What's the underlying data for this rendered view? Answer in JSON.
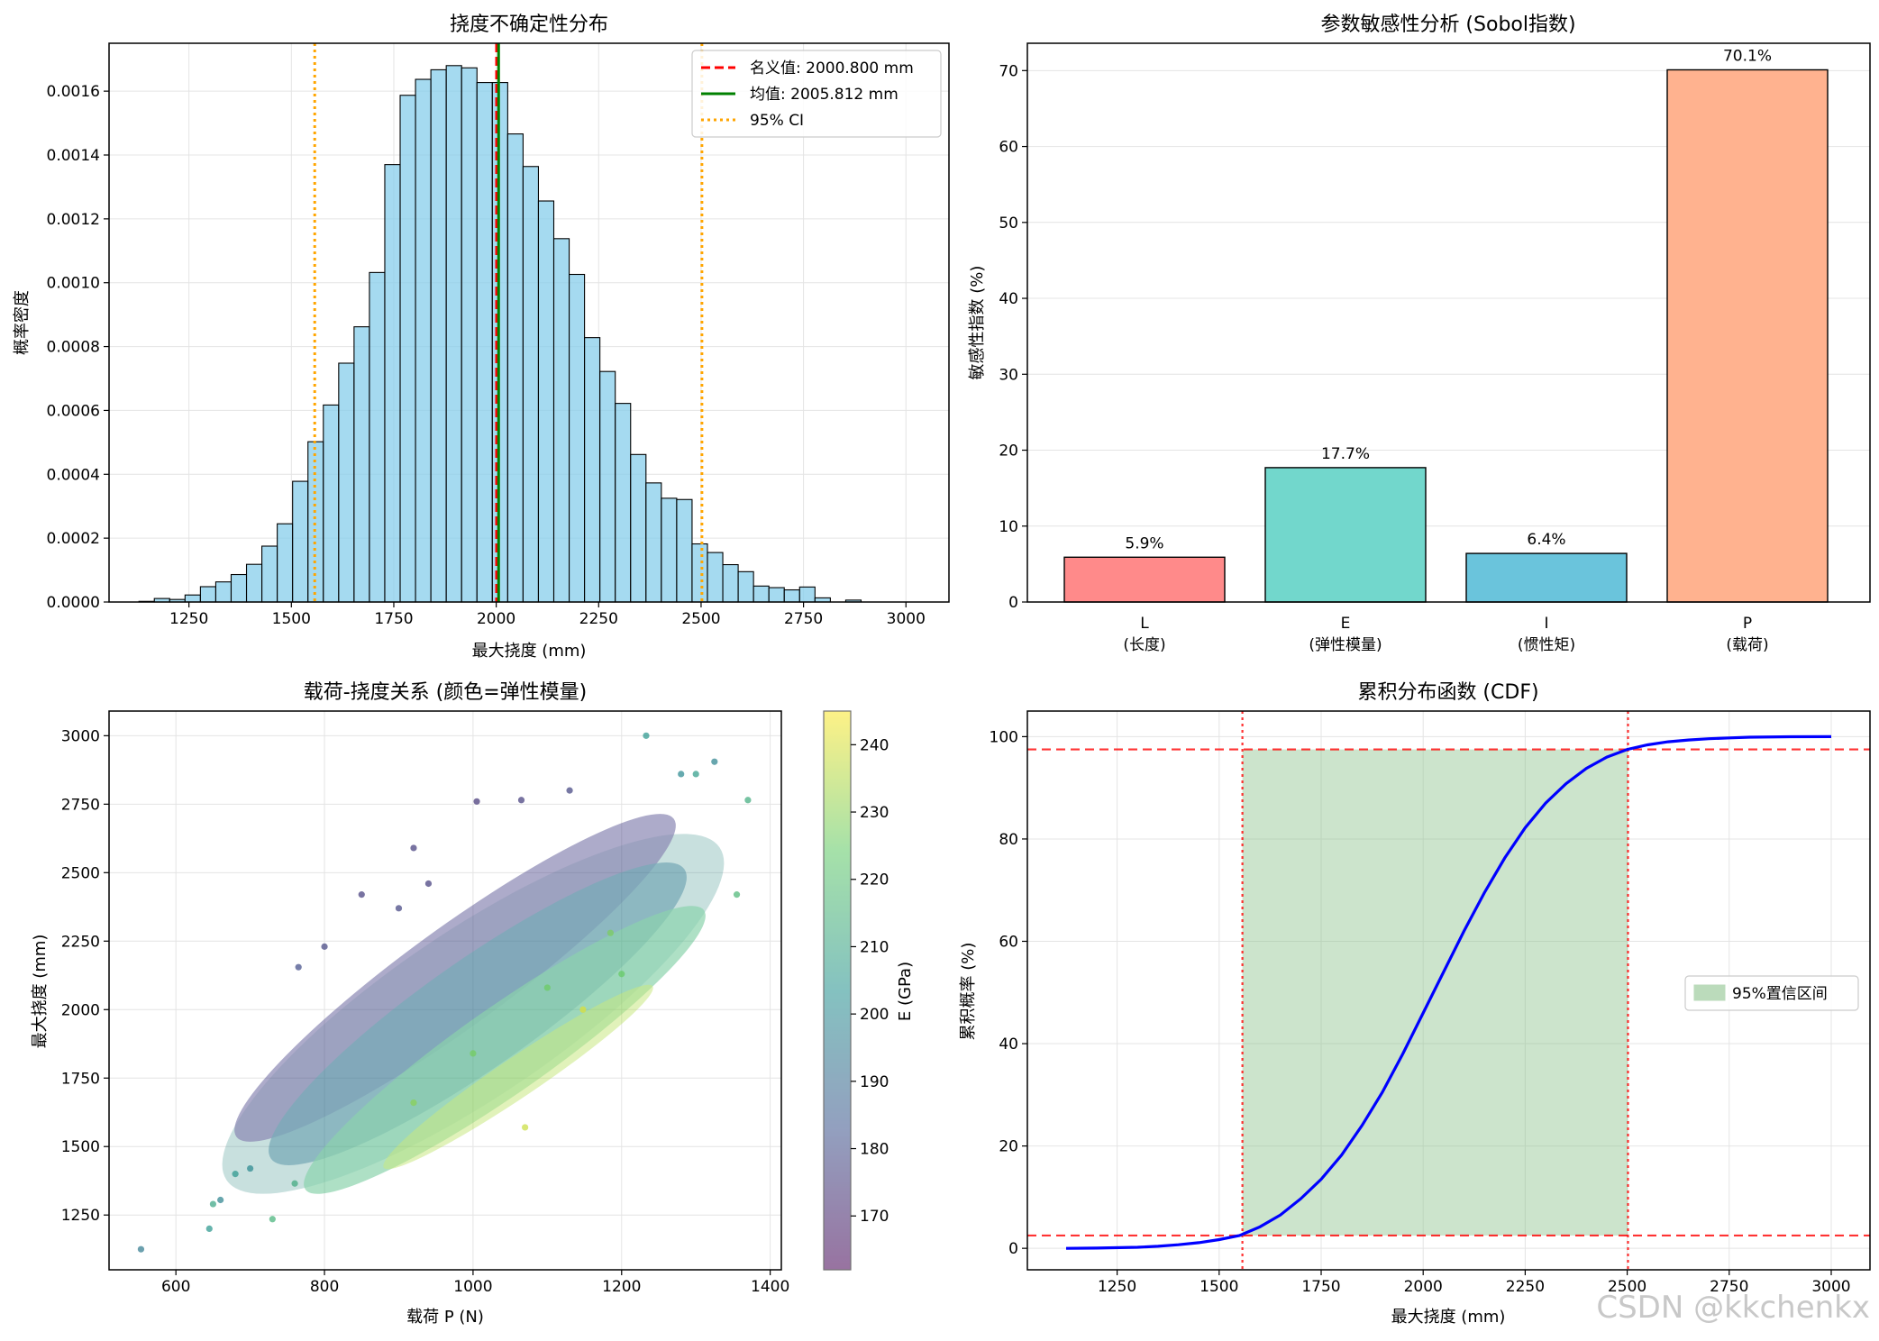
{
  "watermark": "CSDN @kkchenkx",
  "colors": {
    "hist_fill": "#87ceeb",
    "nominal": "#ff0000",
    "mean": "#008000",
    "ci": "#ffa500",
    "cdf_line": "#0000ff",
    "ci_fill": "#8fc48f"
  },
  "chart_data": [
    {
      "id": "hist",
      "type": "histogram",
      "title": "挠度不确定性分布",
      "xlabel": "最大挠度 (mm)",
      "ylabel": "概率密度",
      "xlim": [
        1055,
        3105
      ],
      "ylim": [
        0,
        0.00175
      ],
      "xticks": [
        1250,
        1500,
        1750,
        2000,
        2250,
        2500,
        2750,
        3000
      ],
      "xtick_labels": [
        "1250",
        "1500",
        "1750",
        "2000",
        "2250",
        "2500",
        "2750",
        "3000"
      ],
      "yticks": [
        0,
        0.0002,
        0.0004,
        0.0006,
        0.0008,
        0.001,
        0.0012,
        0.0014,
        0.0016
      ],
      "ytick_labels": [
        "0.0000",
        "0.0002",
        "0.0004",
        "0.0006",
        "0.0008",
        "0.0010",
        "0.0012",
        "0.0014",
        "0.0016"
      ],
      "bin_start": 1128,
      "bin_width": 37.5,
      "values": [
        2e-06,
        1.1e-05,
        8e-06,
        2.2e-05,
        4.8e-05,
        6.3e-05,
        8.6e-05,
        0.000118,
        0.000175,
        0.000245,
        0.000378,
        0.000502,
        0.000617,
        0.000748,
        0.000862,
        0.001032,
        0.00137,
        0.001587,
        0.001637,
        0.001667,
        0.00168,
        0.001673,
        0.001627,
        0.001627,
        0.001466,
        0.001364,
        0.001256,
        0.001138,
        0.001026,
        0.000828,
        0.000722,
        0.000622,
        0.000462,
        0.000373,
        0.000325,
        0.000321,
        0.000182,
        0.000155,
        0.000117,
        9.5e-05,
        5e-05,
        4.5e-05,
        3.8e-05,
        4.7e-05,
        1.3e-05,
        0,
        6e-06,
        0,
        0,
        0,
        0,
        0,
        0
      ],
      "vlines": {
        "nominal": 2000.8,
        "mean": 2005.812,
        "ci_low": 1557,
        "ci_high": 2502
      },
      "legend": [
        "名义值: 2000.800 mm",
        "均值: 2005.812 mm",
        "95% CI"
      ]
    },
    {
      "id": "sobol",
      "type": "bar",
      "title": "参数敏感性分析 (Sobol指数)",
      "ylabel": "敏感性指数 (%)",
      "ylim": [
        0,
        73.6
      ],
      "yticks": [
        0,
        10,
        20,
        30,
        40,
        50,
        60,
        70
      ],
      "ytick_labels": [
        "0",
        "10",
        "20",
        "30",
        "40",
        "50",
        "60",
        "70"
      ],
      "categories": [
        {
          "line1": "L",
          "line2": "(长度)"
        },
        {
          "line1": "E",
          "line2": "(弹性模量)"
        },
        {
          "line1": "I",
          "line2": "(惯性矩)"
        },
        {
          "line1": "P",
          "line2": "(载荷)"
        }
      ],
      "values": [
        5.9,
        17.7,
        6.4,
        70.1
      ],
      "value_labels": [
        "5.9%",
        "17.7%",
        "6.4%",
        "70.1%"
      ],
      "bar_colors": [
        "#ff8a8a",
        "#72d7cc",
        "#6ac4dc",
        "#ffb28f"
      ]
    },
    {
      "id": "scatter",
      "type": "scatter",
      "title": "载荷-挠度关系 (颜色=弹性模量)",
      "xlabel": "载荷 P (N)",
      "ylabel": "最大挠度 (mm)",
      "xlim": [
        510,
        1415
      ],
      "ylim": [
        1050,
        3090
      ],
      "xticks": [
        600,
        800,
        1000,
        1200,
        1400
      ],
      "xtick_labels": [
        "600",
        "800",
        "1000",
        "1200",
        "1400"
      ],
      "yticks": [
        1250,
        1500,
        1750,
        2000,
        2250,
        2500,
        2750,
        3000
      ],
      "ytick_labels": [
        "1250",
        "1500",
        "1750",
        "2000",
        "2250",
        "2500",
        "2750",
        "3000"
      ],
      "colorbar": {
        "label": "E (GPa)",
        "range": [
          162,
          245
        ],
        "ticks": [
          170,
          180,
          190,
          200,
          210,
          220,
          230,
          240
        ],
        "tick_labels": [
          "170",
          "180",
          "190",
          "200",
          "210",
          "220",
          "230",
          "240"
        ]
      },
      "points": [
        [
          553,
          1125,
          195
        ],
        [
          645,
          1200,
          205
        ],
        [
          650,
          1290,
          210
        ],
        [
          660,
          1305,
          198
        ],
        [
          680,
          1400,
          205
        ],
        [
          700,
          1420,
          200
        ],
        [
          730,
          1235,
          215
        ],
        [
          760,
          1365,
          212
        ],
        [
          1070,
          1570,
          238
        ],
        [
          1148,
          2000,
          241
        ],
        [
          1233,
          3000,
          205
        ],
        [
          1280,
          2860,
          200
        ],
        [
          1300,
          2860,
          207
        ],
        [
          1325,
          2905,
          198
        ],
        [
          1370,
          2765,
          213
        ],
        [
          1355,
          2420,
          217
        ],
        [
          1130,
          2800,
          178
        ],
        [
          1065,
          2765,
          176
        ],
        [
          1005,
          2760,
          174
        ],
        [
          920,
          2590,
          176
        ],
        [
          800,
          2230,
          178
        ],
        [
          850,
          2420,
          176
        ],
        [
          765,
          2155,
          180
        ],
        [
          900,
          2370,
          178
        ],
        [
          940,
          2460,
          176
        ],
        [
          1185,
          2280,
          228
        ],
        [
          1200,
          2130,
          225
        ],
        [
          1100,
          2080,
          226
        ],
        [
          1000,
          1840,
          227
        ],
        [
          920,
          1660,
          230
        ]
      ]
    },
    {
      "id": "cdf",
      "type": "line",
      "title": "累积分布函数 (CDF)",
      "xlabel": "最大挠度 (mm)",
      "ylabel": "累积概率 (%)",
      "xlim": [
        1030,
        3095
      ],
      "ylim": [
        -4.2,
        105
      ],
      "xticks": [
        1250,
        1500,
        1750,
        2000,
        2250,
        2500,
        2750,
        3000
      ],
      "xtick_labels": [
        "1250",
        "1500",
        "1750",
        "2000",
        "2250",
        "2500",
        "2750",
        "3000"
      ],
      "yticks": [
        0,
        20,
        40,
        60,
        80,
        100
      ],
      "ytick_labels": [
        "0",
        "20",
        "40",
        "60",
        "80",
        "100"
      ],
      "x": [
        1125,
        1200,
        1300,
        1350,
        1400,
        1450,
        1500,
        1550,
        1600,
        1650,
        1700,
        1750,
        1800,
        1850,
        1900,
        1950,
        2000,
        2050,
        2100,
        2150,
        2200,
        2250,
        2300,
        2350,
        2400,
        2450,
        2500,
        2550,
        2600,
        2650,
        2700,
        2750,
        2800,
        2900,
        3000
      ],
      "y": [
        0,
        0.05,
        0.2,
        0.4,
        0.7,
        1.1,
        1.7,
        2.5,
        4.2,
        6.5,
        9.7,
        13.5,
        18.2,
        24.0,
        30.5,
        38.0,
        46.0,
        54.0,
        62.0,
        69.5,
        76.3,
        82.2,
        87.0,
        90.8,
        93.8,
        96.0,
        97.5,
        98.4,
        99.0,
        99.35,
        99.6,
        99.75,
        99.9,
        99.98,
        100
      ],
      "hlines": [
        2.5,
        97.5
      ],
      "vlines": [
        1557,
        2502
      ],
      "legend": [
        "95%置信区间"
      ]
    }
  ]
}
